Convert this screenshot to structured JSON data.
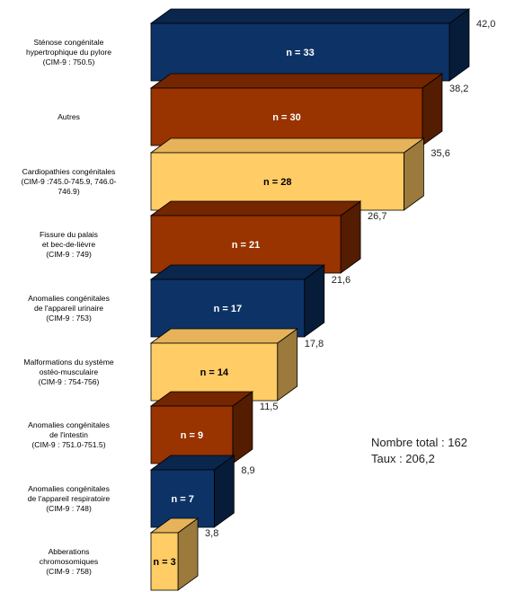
{
  "chart_data": {
    "type": "bar",
    "orientation": "horizontal",
    "title": "",
    "xlabel": "",
    "ylabel": "",
    "xlim": [
      0,
      42
    ],
    "categories": [
      "Sténose congénitale\nhypertrophique du pylore\n(CIM-9 : 750.5)",
      "Autres",
      "Cardiopathies congénitales\n(CIM-9 :745.0-745.9, 746.0-\n746.9)",
      "Fissure du palais\net bec-de-lièvre\n(CIM-9 : 749)",
      "Anomalies congénitales\nde l'appareil urinaire\n(CIM-9 : 753)",
      "Malformations du système\nostéo-musculaire\n(CIM-9 : 754-756)",
      "Anomalies congénitales\nde l'intestin\n(CIM-9 : 751.0-751.5)",
      "Anomalies congénitales\nde l'appareil respiratoire\n(CIM-9 : 748)",
      "Abberations\nchromosomiques\n(CIM-9 : 758)"
    ],
    "values": [
      42.0,
      38.2,
      35.6,
      26.7,
      21.6,
      17.8,
      11.5,
      8.9,
      3.8
    ],
    "value_labels": [
      "42,0",
      "38,2",
      "35,6",
      "26,7",
      "21,6",
      "17,8",
      "11,5",
      "8,9",
      "3,8"
    ],
    "counts": [
      "n = 33",
      "n = 30",
      "n = 28",
      "n = 21",
      "n = 17",
      "n = 14",
      "n = 9",
      "n = 7",
      "n = 3"
    ],
    "colors": [
      "#0d3366",
      "#993300",
      "#ffcc66",
      "#993300",
      "#0d3366",
      "#ffcc66",
      "#993300",
      "#0d3366",
      "#ffcc66"
    ],
    "grid": false,
    "legend": "none"
  },
  "summary": {
    "total": "Nombre total : 162",
    "rate": "Taux : 206,2"
  }
}
